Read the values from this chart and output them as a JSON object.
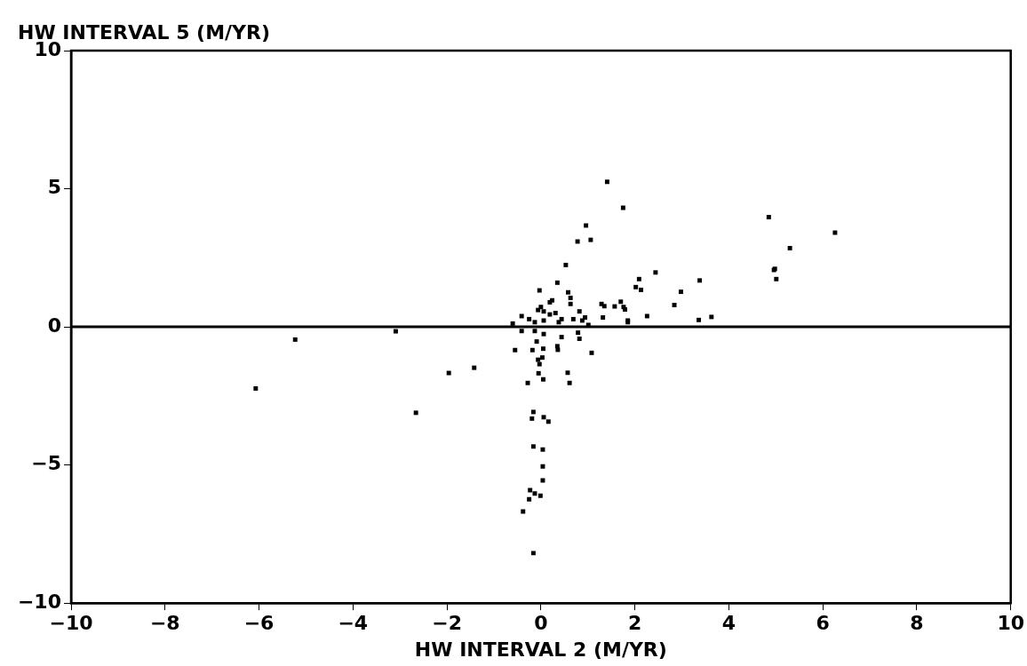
{
  "chart_data": {
    "type": "scatter",
    "xlabel": "HW INTERVAL 2 (M/YR)",
    "ylabel": "HW INTERVAL 5 (M/YR)",
    "xlim": [
      -10,
      10
    ],
    "ylim": [
      -10,
      10
    ],
    "xticks": [
      -10,
      -8,
      -6,
      -4,
      -2,
      0,
      2,
      4,
      6,
      8,
      10
    ],
    "yticks": [
      -10,
      -5,
      0,
      5,
      10
    ],
    "grid": false,
    "legend": false,
    "marker": "square",
    "ref_lines": [
      {
        "axis": "y",
        "value": 0,
        "color": "#000000"
      }
    ],
    "series": [
      {
        "color": "#000000",
        "x": [
          -6.07,
          -5.23,
          -3.09,
          -2.66,
          -1.96,
          -1.42,
          1.41,
          1.75,
          0.96,
          0.78,
          1.06,
          0.53,
          4.85,
          5.3,
          4.98,
          6.26,
          4.96,
          5.01,
          2.44,
          3.38,
          2.09,
          2.13,
          2.02,
          2.98,
          2.84,
          2.26,
          3.36,
          3.63,
          1.76,
          1.85,
          0.35,
          -0.03,
          0.58,
          0.63,
          0.24,
          0.63,
          0.82,
          0.94,
          1.29,
          1.35,
          1.57,
          1.7,
          1.79,
          1.32,
          1.85,
          -0.41,
          -0.25,
          -0.06,
          0.06,
          0.19,
          0.31,
          0.44,
          0.06,
          -0.13,
          0.38,
          0.69,
          0.88,
          -0.6,
          1.01,
          0.19,
          0.0,
          -0.41,
          -0.13,
          0.06,
          0.44,
          0.82,
          0.79,
          -0.09,
          -0.55,
          -0.18,
          0.05,
          0.35,
          0.36,
          1.08,
          -0.06,
          0.03,
          -0.03,
          -0.05,
          0.05,
          -0.28,
          0.57,
          0.61,
          -0.16,
          -0.19,
          0.06,
          0.16,
          -0.16,
          0.04,
          0.04,
          0.04,
          -0.23,
          -0.13,
          -0.01,
          -0.25,
          -0.38,
          -0.16
        ],
        "values": [
          -2.23,
          -0.46,
          -0.16,
          -3.11,
          -1.67,
          -1.48,
          5.25,
          4.31,
          3.67,
          3.09,
          3.15,
          2.24,
          3.97,
          2.85,
          2.1,
          3.41,
          2.06,
          1.73,
          1.97,
          1.68,
          1.73,
          1.34,
          1.44,
          1.27,
          0.79,
          0.39,
          0.25,
          0.36,
          0.72,
          0.17,
          1.6,
          1.32,
          1.25,
          1.05,
          0.96,
          0.83,
          0.56,
          0.34,
          0.83,
          0.75,
          0.74,
          0.91,
          0.63,
          0.34,
          0.23,
          0.39,
          0.28,
          0.61,
          0.56,
          0.45,
          0.5,
          0.28,
          0.23,
          0.17,
          0.17,
          0.28,
          0.23,
          0.12,
          0.07,
          0.89,
          0.72,
          -0.15,
          -0.15,
          -0.26,
          -0.37,
          -0.43,
          -0.21,
          -0.53,
          -0.84,
          -0.84,
          -0.79,
          -0.7,
          -0.83,
          -0.94,
          -1.19,
          -1.11,
          -1.35,
          -1.68,
          -1.9,
          -2.03,
          -1.66,
          -2.03,
          -3.08,
          -3.32,
          -3.27,
          -3.43,
          -4.33,
          -4.44,
          -5.05,
          -5.56,
          -5.91,
          -6.03,
          -6.11,
          -6.24,
          -6.68,
          -8.19
        ]
      }
    ]
  }
}
